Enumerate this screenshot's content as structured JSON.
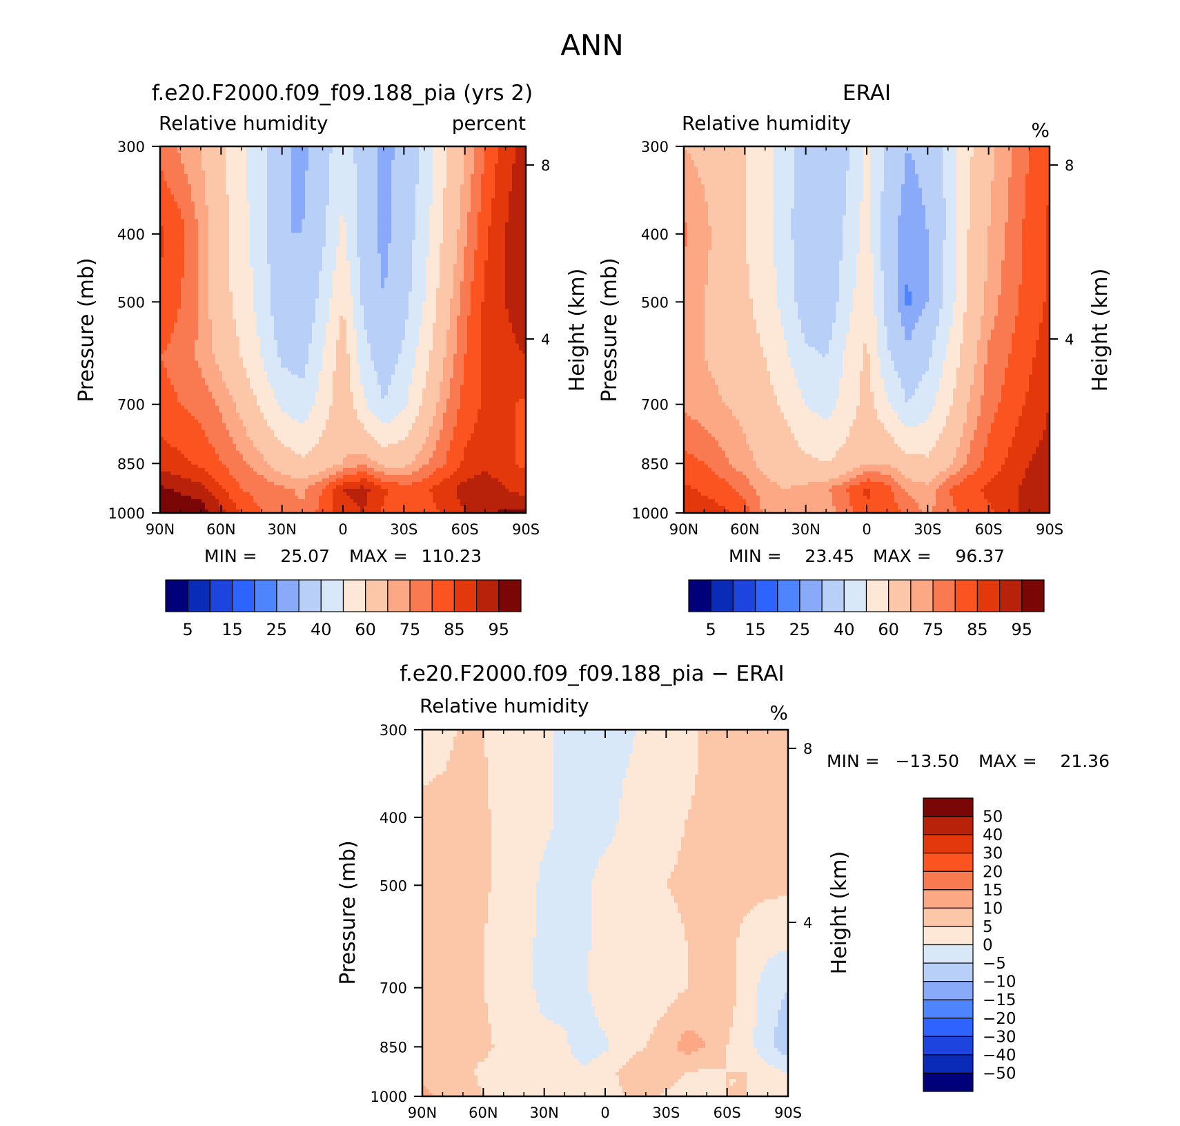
{
  "figure": {
    "title": "ANN"
  },
  "chart_data": [
    {
      "type": "heatmap",
      "title": "f.e20.F2000.f09_f09.188_pia (yrs 2)",
      "subtitle_left": "Relative humidity",
      "subtitle_right": "percent",
      "ylabel": "Pressure (mb)",
      "ylabel_right": "Height (km)",
      "x_ticks": [
        "90N",
        "60N",
        "30N",
        "0",
        "30S",
        "60S",
        "90S"
      ],
      "y_ticks": [
        "300",
        "400",
        "500",
        "700",
        "850",
        "1000"
      ],
      "y_right_ticks": [
        "8",
        "4"
      ],
      "ylim": [
        1000,
        300
      ],
      "y_scale": "log",
      "stats": {
        "min_label": "MIN =",
        "min": "25.07",
        "max_label": "MAX =",
        "max": "110.23"
      },
      "colorbar": {
        "orientation": "horizontal",
        "colors": [
          "#00007a",
          "#0a2ab8",
          "#1e44e0",
          "#2f63ff",
          "#4f84ff",
          "#88aaf8",
          "#b8cff8",
          "#d8e8f8",
          "#fde8d8",
          "#fcc6a8",
          "#fca884",
          "#f97a50",
          "#fb5420",
          "#e2380c",
          "#b8220a",
          "#7a0606"
        ],
        "labels": [
          "5",
          "15",
          "25",
          "40",
          "60",
          "75",
          "85",
          "95"
        ]
      },
      "field": {
        "lat": [
          90,
          80,
          70,
          60,
          50,
          40,
          30,
          20,
          10,
          0,
          -10,
          -20,
          -30,
          -40,
          -50,
          -60,
          -70,
          -80,
          -90
        ],
        "p": [
          300,
          400,
          500,
          600,
          700,
          850,
          925,
          1000
        ],
        "values": [
          [
            78,
            74,
            70,
            62,
            52,
            42,
            32,
            28,
            34,
            48,
            34,
            28,
            32,
            42,
            58,
            70,
            80,
            88,
            92
          ],
          [
            86,
            82,
            74,
            64,
            54,
            44,
            30,
            30,
            38,
            52,
            34,
            28,
            34,
            46,
            62,
            74,
            84,
            90,
            94
          ],
          [
            84,
            80,
            74,
            64,
            56,
            46,
            32,
            30,
            44,
            60,
            38,
            30,
            36,
            50,
            66,
            78,
            86,
            90,
            94
          ],
          [
            80,
            78,
            74,
            68,
            60,
            50,
            38,
            36,
            50,
            66,
            44,
            34,
            42,
            56,
            70,
            80,
            86,
            88,
            90
          ],
          [
            82,
            80,
            78,
            74,
            68,
            58,
            48,
            44,
            54,
            68,
            52,
            40,
            48,
            62,
            74,
            82,
            86,
            86,
            84
          ],
          [
            88,
            86,
            84,
            80,
            76,
            72,
            66,
            62,
            66,
            70,
            74,
            68,
            68,
            74,
            80,
            86,
            88,
            86,
            84
          ],
          [
            96,
            94,
            92,
            86,
            80,
            78,
            76,
            74,
            80,
            90,
            92,
            86,
            82,
            84,
            88,
            92,
            94,
            90,
            88
          ],
          [
            102,
            100,
            98,
            92,
            84,
            80,
            78,
            76,
            82,
            88,
            90,
            84,
            80,
            82,
            86,
            90,
            94,
            96,
            96
          ]
        ]
      }
    },
    {
      "type": "heatmap",
      "title": "ERAI",
      "subtitle_left": "Relative humidity",
      "subtitle_right": "%",
      "ylabel": "Pressure (mb)",
      "ylabel_right": "Height (km)",
      "x_ticks": [
        "90N",
        "60N",
        "30N",
        "0",
        "30S",
        "60S",
        "90S"
      ],
      "y_ticks": [
        "300",
        "400",
        "500",
        "700",
        "850",
        "1000"
      ],
      "y_right_ticks": [
        "8",
        "4"
      ],
      "ylim": [
        1000,
        300
      ],
      "y_scale": "log",
      "stats": {
        "min_label": "MIN =",
        "min": "23.45",
        "max_label": "MAX =",
        "max": "96.37"
      },
      "colorbar": {
        "orientation": "horizontal",
        "colors": [
          "#00007a",
          "#0a2ab8",
          "#1e44e0",
          "#2f63ff",
          "#4f84ff",
          "#88aaf8",
          "#b8cff8",
          "#d8e8f8",
          "#fde8d8",
          "#fcc6a8",
          "#fca884",
          "#f97a50",
          "#fb5420",
          "#e2380c",
          "#b8220a",
          "#7a0606"
        ],
        "labels": [
          "5",
          "15",
          "25",
          "40",
          "60",
          "75",
          "85",
          "95"
        ]
      },
      "field": {
        "lat": [
          90,
          80,
          70,
          60,
          50,
          40,
          30,
          20,
          10,
          0,
          -10,
          -20,
          -30,
          -40,
          -50,
          -60,
          -70,
          -80,
          -90
        ],
        "p": [
          300,
          400,
          500,
          600,
          700,
          850,
          925,
          1000
        ],
        "values": [
          [
            70,
            68,
            64,
            60,
            54,
            44,
            34,
            30,
            38,
            52,
            38,
            30,
            32,
            42,
            58,
            68,
            74,
            80,
            84
          ],
          [
            76,
            72,
            66,
            60,
            54,
            44,
            32,
            30,
            42,
            54,
            34,
            26,
            30,
            42,
            60,
            70,
            76,
            82,
            86
          ],
          [
            72,
            70,
            66,
            62,
            56,
            46,
            34,
            32,
            46,
            58,
            36,
            24,
            30,
            44,
            62,
            72,
            78,
            82,
            86
          ],
          [
            70,
            70,
            68,
            64,
            60,
            52,
            42,
            40,
            52,
            62,
            42,
            32,
            38,
            52,
            66,
            76,
            80,
            84,
            88
          ],
          [
            74,
            72,
            70,
            68,
            64,
            58,
            50,
            46,
            54,
            64,
            52,
            40,
            46,
            58,
            70,
            78,
            82,
            86,
            90
          ],
          [
            82,
            80,
            76,
            72,
            68,
            66,
            62,
            60,
            64,
            70,
            70,
            64,
            62,
            68,
            76,
            82,
            86,
            90,
            92
          ],
          [
            86,
            84,
            82,
            78,
            72,
            70,
            72,
            74,
            80,
            86,
            82,
            74,
            72,
            80,
            84,
            86,
            88,
            92,
            94
          ],
          [
            90,
            88,
            86,
            82,
            74,
            70,
            70,
            72,
            78,
            84,
            84,
            78,
            74,
            78,
            82,
            84,
            88,
            92,
            94
          ]
        ]
      }
    },
    {
      "type": "heatmap",
      "title": "f.e20.F2000.f09_f09.188_pia − ERAI",
      "subtitle_left": "Relative humidity",
      "subtitle_right": "%",
      "ylabel": "Pressure (mb)",
      "ylabel_right": "Height (km)",
      "x_ticks": [
        "90N",
        "60N",
        "30N",
        "0",
        "30S",
        "60S",
        "90S"
      ],
      "y_ticks": [
        "300",
        "400",
        "500",
        "700",
        "850",
        "1000"
      ],
      "y_right_ticks": [
        "8",
        "4"
      ],
      "ylim": [
        1000,
        300
      ],
      "y_scale": "log",
      "stats": {
        "min_label": "MIN =",
        "min": "−13.50",
        "max_label": "MAX =",
        "max": "21.36"
      },
      "colorbar": {
        "orientation": "vertical",
        "colors": [
          "#00007a",
          "#0a2ab8",
          "#1e44e0",
          "#2f63ff",
          "#4f84ff",
          "#88aaf8",
          "#b8cff8",
          "#d8e8f8",
          "#fde8d8",
          "#fcc6a8",
          "#fca884",
          "#f97a50",
          "#fb5420",
          "#e2380c",
          "#b8220a",
          "#7a0606"
        ],
        "labels": [
          "−50",
          "−40",
          "−30",
          "−20",
          "−15",
          "−10",
          "−5",
          "0",
          "5",
          "10",
          "15",
          "20",
          "30",
          "40",
          "50"
        ]
      },
      "field": {
        "lat": [
          90,
          80,
          70,
          60,
          50,
          40,
          30,
          20,
          10,
          0,
          -10,
          -20,
          -30,
          -40,
          -50,
          -60,
          -70,
          -80,
          -90
        ],
        "p": [
          300,
          400,
          500,
          600,
          700,
          850,
          925,
          1000
        ],
        "values": [
          [
            3,
            3,
            6,
            5,
            3,
            2,
            1,
            -1,
            -2,
            -2,
            -1,
            1,
            2,
            3,
            6,
            6,
            6,
            8,
            8
          ],
          [
            6,
            7,
            7,
            6,
            3,
            1,
            1,
            -1,
            -2,
            -2,
            1,
            2,
            3,
            5,
            6,
            6,
            6,
            6,
            6
          ],
          [
            7,
            7,
            7,
            6,
            3,
            2,
            -1,
            -2,
            -1,
            2,
            2,
            4,
            5,
            6,
            5,
            6,
            6,
            6,
            6
          ],
          [
            6,
            6,
            6,
            5,
            3,
            1,
            -1,
            -3,
            -1,
            3,
            3,
            2,
            3,
            5,
            7,
            6,
            4,
            2,
            1
          ],
          [
            5,
            5,
            6,
            5,
            3,
            1,
            -1,
            -2,
            -1,
            4,
            2,
            2,
            3,
            5,
            8,
            7,
            3,
            -3,
            -5
          ],
          [
            6,
            5,
            6,
            6,
            4,
            1,
            1,
            1,
            -3,
            -1,
            3,
            5,
            8,
            12,
            10,
            5,
            2,
            -4,
            -8
          ],
          [
            9,
            8,
            6,
            4,
            3,
            2,
            3,
            2,
            1,
            4,
            6,
            9,
            8,
            5,
            4,
            5,
            5,
            2,
            0
          ],
          [
            11,
            9,
            8,
            5,
            3,
            2,
            3,
            4,
            3,
            3,
            5,
            6,
            4,
            2,
            2,
            5,
            5,
            3,
            2
          ]
        ]
      }
    }
  ]
}
